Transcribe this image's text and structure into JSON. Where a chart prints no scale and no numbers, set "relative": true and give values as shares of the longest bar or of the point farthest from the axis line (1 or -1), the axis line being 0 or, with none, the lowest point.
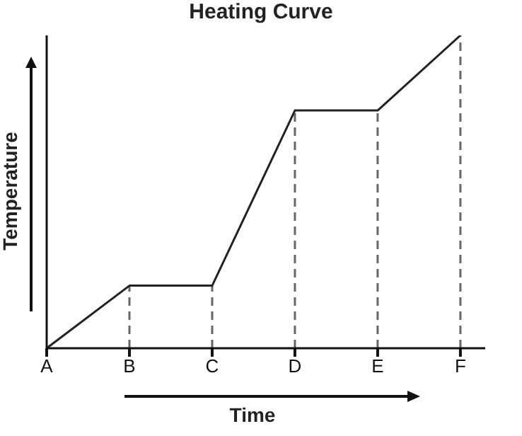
{
  "chart_data": {
    "type": "line",
    "title": "Heating Curve",
    "xlabel": "Time",
    "ylabel": "Temperature",
    "relative": true,
    "categories": [
      "A",
      "B",
      "C",
      "D",
      "E",
      "F"
    ],
    "series": [
      {
        "color": "#222222",
        "values": [
          0,
          0.2,
          0.2,
          0.76,
          0.76,
          1
        ]
      }
    ],
    "ref_lines": [
      {
        "axis": "x",
        "value": "B",
        "color": "#666666",
        "line_style": "dashed"
      },
      {
        "axis": "x",
        "value": "C",
        "color": "#666666",
        "line_style": "dashed"
      },
      {
        "axis": "x",
        "value": "D",
        "color": "#666666",
        "line_style": "dashed"
      },
      {
        "axis": "x",
        "value": "E",
        "color": "#666666",
        "line_style": "dashed"
      },
      {
        "axis": "x",
        "value": "F",
        "color": "#666666",
        "line_style": "dashed"
      }
    ],
    "grid": false,
    "legend": false,
    "marker": "none",
    "line_style": "solid"
  }
}
